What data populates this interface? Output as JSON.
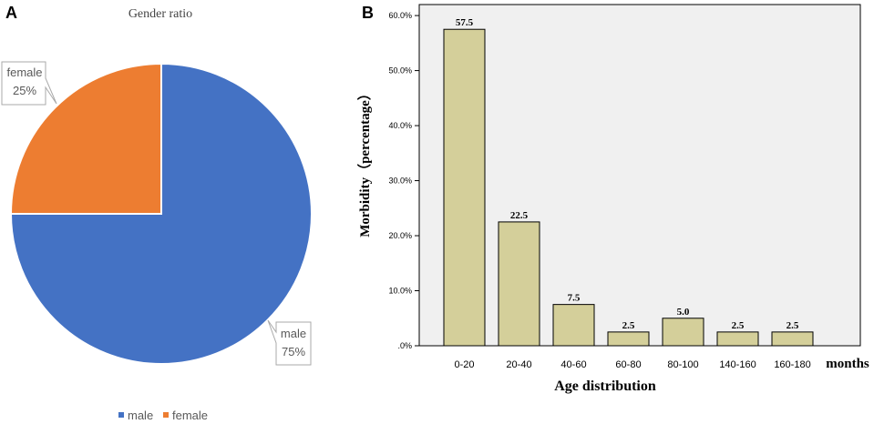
{
  "panel_a": {
    "letter": "A",
    "chart_data": {
      "type": "pie",
      "title": "Gender ratio",
      "categories": [
        "male",
        "female"
      ],
      "values": [
        75,
        25
      ],
      "value_labels": [
        "75%",
        "25%"
      ],
      "colors": [
        "#4472c4",
        "#ed7d31"
      ],
      "legend": [
        "male",
        "female"
      ],
      "legend_position": "bottom"
    }
  },
  "panel_b": {
    "letter": "B",
    "chart_data": {
      "type": "bar",
      "categories": [
        "0-20",
        "20-40",
        "40-60",
        "60-80",
        "80-100",
        "140-160",
        "160-180"
      ],
      "values": [
        57.5,
        22.5,
        7.5,
        2.5,
        5.0,
        2.5,
        2.5
      ],
      "data_labels": [
        "57.5",
        "22.5",
        "7.5",
        "2.5",
        "5.0",
        "2.5",
        "2.5"
      ],
      "ylabel": "Morbidity（percentage）",
      "xlabel": "Age distribution",
      "xunit": "months",
      "ylim": [
        0,
        62
      ],
      "yticks": [
        0,
        10,
        20,
        30,
        40,
        50,
        60
      ],
      "ytick_labels": [
        ".0%",
        "10.0%",
        "20.0%",
        "30.0%",
        "40.0%",
        "50.0%",
        "60.0%"
      ],
      "bar_color": "#d4cf9a",
      "plot_background": "#f0f0f0",
      "grid": false
    }
  }
}
